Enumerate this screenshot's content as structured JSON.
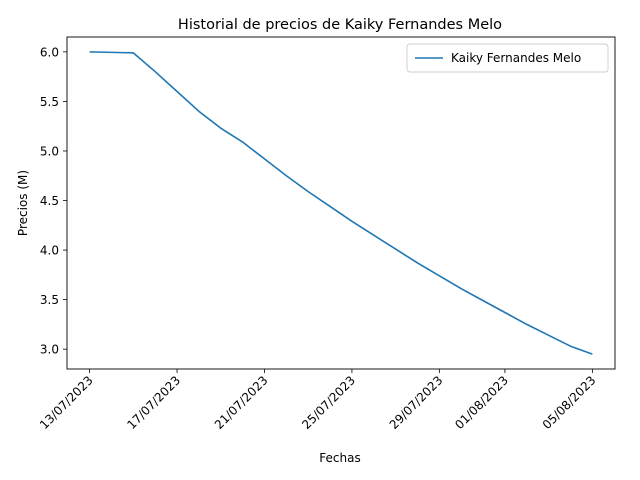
{
  "chart_data": {
    "type": "line",
    "title": "Historial de precios de Kaiky Fernandes Melo",
    "xlabel": "Fechas",
    "ylabel": "Precios (M)",
    "x": [
      "13/07/2023",
      "15/07/2023",
      "16/07/2023",
      "17/07/2023",
      "18/07/2023",
      "19/07/2023",
      "20/07/2023",
      "21/07/2023",
      "22/07/2023",
      "23/07/2023",
      "24/07/2023",
      "25/07/2023",
      "26/07/2023",
      "27/07/2023",
      "28/07/2023",
      "29/07/2023",
      "30/07/2023",
      "31/07/2023",
      "01/08/2023",
      "02/08/2023",
      "03/08/2023",
      "04/08/2023",
      "05/08/2023"
    ],
    "series": [
      {
        "name": "Kaiky Fernandes Melo",
        "color": "#1f77b4",
        "values": [
          6.0,
          5.99,
          5.8,
          5.6,
          5.4,
          5.23,
          5.09,
          4.92,
          4.75,
          4.59,
          4.44,
          4.29,
          4.15,
          4.01,
          3.87,
          3.74,
          3.61,
          3.49,
          3.37,
          3.25,
          3.14,
          3.03,
          2.95
        ]
      }
    ],
    "xticks": [
      "13/07/2023",
      "17/07/2023",
      "21/07/2023",
      "25/07/2023",
      "29/07/2023",
      "01/08/2023",
      "05/08/2023"
    ],
    "yticks": [
      "3.0",
      "3.5",
      "4.0",
      "4.5",
      "5.0",
      "5.5",
      "6.0"
    ],
    "ylim": [
      2.8,
      6.15
    ],
    "grid": false,
    "legend": "top-right"
  }
}
